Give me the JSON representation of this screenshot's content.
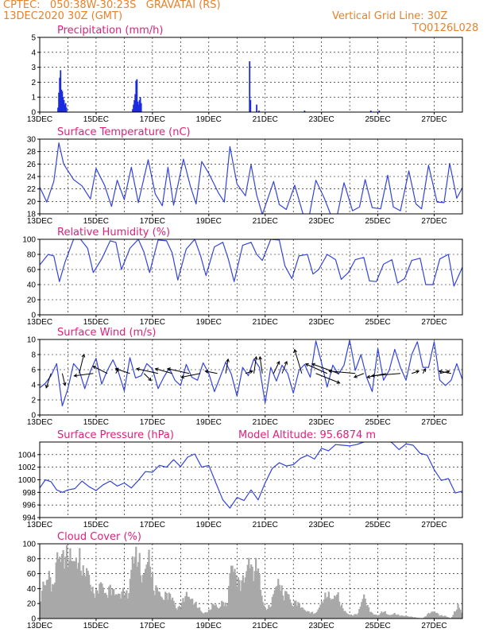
{
  "header": {
    "line1": "CPTEC:   050:38W-30:23S   GRAVATAI (RS)",
    "line2": "13DEC2020 30Z (GMT)",
    "grid_note": "Vertical Grid Line: 30Z",
    "run_code": "TQ0126L028"
  },
  "extra_label": "Model Altitude: 95.6874 m",
  "colors": {
    "line": "#3344dd",
    "bar": "#1a2bdd",
    "cloud": "#a8a8a8",
    "header": "#e8822a",
    "title": "#e0207a"
  },
  "chart_data": [
    {
      "type": "bar",
      "title": "Precipitation (mm/h)",
      "ylim": [
        0,
        5
      ],
      "yticks": [
        0,
        1,
        2,
        3,
        4,
        5
      ],
      "xticks": [
        "13DEC",
        "15DEC",
        "17DEC",
        "19DEC",
        "21DEC",
        "23DEC",
        "25DEC",
        "27DEC"
      ],
      "x_days": [
        13.0,
        28.0
      ],
      "bars": [
        {
          "x": 13.65,
          "y": 0.3
        },
        {
          "x": 13.68,
          "y": 1.3
        },
        {
          "x": 13.71,
          "y": 2.3
        },
        {
          "x": 13.74,
          "y": 2.8
        },
        {
          "x": 13.77,
          "y": 1.5
        },
        {
          "x": 13.8,
          "y": 1.4
        },
        {
          "x": 13.83,
          "y": 1.0
        },
        {
          "x": 13.86,
          "y": 0.8
        },
        {
          "x": 13.89,
          "y": 0.5
        },
        {
          "x": 13.92,
          "y": 0.6
        },
        {
          "x": 13.95,
          "y": 0.3
        },
        {
          "x": 16.3,
          "y": 0.2
        },
        {
          "x": 16.33,
          "y": 0.5
        },
        {
          "x": 16.36,
          "y": 0.8
        },
        {
          "x": 16.39,
          "y": 1.2
        },
        {
          "x": 16.42,
          "y": 2.1
        },
        {
          "x": 16.45,
          "y": 2.2
        },
        {
          "x": 16.48,
          "y": 0.7
        },
        {
          "x": 16.51,
          "y": 0.5
        },
        {
          "x": 16.54,
          "y": 0.8
        },
        {
          "x": 16.57,
          "y": 1.0
        },
        {
          "x": 16.6,
          "y": 0.6
        },
        {
          "x": 20.45,
          "y": 3.4
        },
        {
          "x": 20.48,
          "y": 0.8
        },
        {
          "x": 20.7,
          "y": 0.5
        },
        {
          "x": 20.78,
          "y": 0.1
        },
        {
          "x": 22.4,
          "y": 0.1
        },
        {
          "x": 24.75,
          "y": 0.1
        },
        {
          "x": 25.05,
          "y": 0.1
        }
      ]
    },
    {
      "type": "line",
      "title": "Surface Temperature (nC)",
      "ylim": [
        18,
        30
      ],
      "yticks": [
        18,
        20,
        22,
        24,
        26,
        28,
        30
      ],
      "xticks": [
        "13DEC",
        "15DEC",
        "17DEC",
        "19DEC",
        "21DEC",
        "23DEC",
        "25DEC",
        "27DEC"
      ],
      "x_days": [
        13.0,
        28.0
      ],
      "x": [
        13.0,
        13.25,
        13.5,
        13.68,
        13.85,
        14.2,
        14.5,
        14.8,
        15.0,
        15.3,
        15.55,
        15.75,
        16.0,
        16.25,
        16.5,
        16.85,
        17.1,
        17.35,
        17.55,
        17.75,
        18.1,
        18.35,
        18.55,
        18.75,
        19.0,
        19.35,
        19.55,
        19.75,
        20.0,
        20.3,
        20.5,
        20.7,
        20.9,
        21.3,
        21.5,
        21.75,
        22.05,
        22.35,
        22.55,
        22.8,
        23.1,
        23.35,
        23.55,
        23.8,
        24.1,
        24.35,
        24.55,
        24.8,
        25.1,
        25.35,
        25.55,
        25.8,
        26.1,
        26.35,
        26.55,
        26.8,
        27.1,
        27.35,
        27.55,
        27.8,
        28.0
      ],
      "y": [
        22.3,
        19.9,
        23.2,
        29.4,
        26.0,
        23.5,
        22.5,
        20.4,
        25.3,
        22.6,
        19.2,
        23.4,
        20.3,
        25.5,
        19.8,
        26.7,
        21.2,
        19.3,
        25.5,
        19.4,
        26.8,
        22.4,
        19.6,
        26.4,
        24.5,
        21.3,
        19.9,
        28.8,
        22.8,
        20.9,
        25.9,
        21.0,
        17.9,
        23.2,
        19.5,
        18.7,
        22.6,
        17.9,
        17.3,
        23.4,
        20.5,
        17.6,
        17.6,
        23.0,
        18.5,
        19.1,
        23.5,
        19.0,
        18.8,
        24.2,
        19.1,
        18.5,
        24.9,
        19.6,
        18.8,
        25.8,
        19.9,
        19.8,
        26.1,
        20.5,
        22.2
      ]
    },
    {
      "type": "line",
      "title": "Relative Humidity (%)",
      "ylim": [
        0,
        100
      ],
      "yticks": [
        0,
        20,
        40,
        60,
        80,
        100
      ],
      "xticks": [
        "13DEC",
        "15DEC",
        "17DEC",
        "19DEC",
        "21DEC",
        "23DEC",
        "25DEC",
        "27DEC"
      ],
      "x_days": [
        13.0,
        28.0
      ],
      "x": [
        13.0,
        13.3,
        13.5,
        13.7,
        13.9,
        14.2,
        14.45,
        14.7,
        14.9,
        15.2,
        15.5,
        15.7,
        15.9,
        16.2,
        16.5,
        16.7,
        16.9,
        17.2,
        17.5,
        17.7,
        17.9,
        18.2,
        18.5,
        18.7,
        18.9,
        19.2,
        19.5,
        19.7,
        19.9,
        20.2,
        20.5,
        20.7,
        20.9,
        21.2,
        21.5,
        21.7,
        21.95,
        22.2,
        22.5,
        22.7,
        22.9,
        23.2,
        23.5,
        23.7,
        23.95,
        24.2,
        24.5,
        24.7,
        24.95,
        25.2,
        25.5,
        25.7,
        25.95,
        26.2,
        26.5,
        26.7,
        26.95,
        27.2,
        27.5,
        27.7,
        28.0
      ],
      "y": [
        66,
        80,
        78,
        44,
        70,
        100,
        100,
        88,
        56,
        74,
        98,
        96,
        60,
        88,
        100,
        83,
        56,
        99,
        98,
        82,
        46,
        87,
        100,
        79,
        52,
        90,
        96,
        73,
        44,
        92,
        96,
        80,
        72,
        100,
        99,
        65,
        48,
        78,
        80,
        54,
        60,
        80,
        73,
        47,
        56,
        73,
        76,
        45,
        44,
        67,
        73,
        42,
        48,
        72,
        75,
        40,
        40,
        74,
        80,
        38,
        63
      ]
    },
    {
      "type": "line",
      "title": "Surface Wind (m/s)",
      "ylim": [
        0,
        10
      ],
      "yticks": [
        0,
        2,
        4,
        6,
        8,
        10
      ],
      "xticks": [
        "13DEC",
        "15DEC",
        "17DEC",
        "19DEC",
        "21DEC",
        "23DEC",
        "25DEC",
        "27DEC"
      ],
      "x_days": [
        13.0,
        28.0
      ],
      "x": [
        13.0,
        13.2,
        13.4,
        13.6,
        13.8,
        14.0,
        14.2,
        14.4,
        14.6,
        14.8,
        15.0,
        15.2,
        15.4,
        15.6,
        15.8,
        16.0,
        16.2,
        16.4,
        16.6,
        16.8,
        17.0,
        17.2,
        17.4,
        17.6,
        17.8,
        18.0,
        18.2,
        18.4,
        18.6,
        18.8,
        19.0,
        19.2,
        19.4,
        19.6,
        19.8,
        20.0,
        20.2,
        20.4,
        20.6,
        20.8,
        21.0,
        21.2,
        21.4,
        21.6,
        21.8,
        22.0,
        22.2,
        22.4,
        22.6,
        22.8,
        23.0,
        23.2,
        23.4,
        23.6,
        23.8,
        24.0,
        24.2,
        24.4,
        24.6,
        24.8,
        25.0,
        25.2,
        25.4,
        25.6,
        25.8,
        26.0,
        26.2,
        26.4,
        26.6,
        26.8,
        27.0,
        27.2,
        27.4,
        27.6,
        27.8,
        28.0
      ],
      "y": [
        3.6,
        4.2,
        5.2,
        6.8,
        1.2,
        3.5,
        6.8,
        5.9,
        3.5,
        5.8,
        7.5,
        4.1,
        5.9,
        7.3,
        5.6,
        3.2,
        7.6,
        4.9,
        5.2,
        6.8,
        6.1,
        3.5,
        5.0,
        6.2,
        4.6,
        3.9,
        6.7,
        5.0,
        4.6,
        6.9,
        5.5,
        3.1,
        5.0,
        7.0,
        5.4,
        2.5,
        6.3,
        5.2,
        7.4,
        6.3,
        1.6,
        6.3,
        4.5,
        6.6,
        5.5,
        2.9,
        5.9,
        6.7,
        5.0,
        9.8,
        6.9,
        3.7,
        6.6,
        5.4,
        6.6,
        9.9,
        5.9,
        8.0,
        5.0,
        3.1,
        8.8,
        4.6,
        5.9,
        8.7,
        6.3,
        4.6,
        8.0,
        9.7,
        6.3,
        6.3,
        9.7,
        4.6,
        3.9,
        4.6,
        6.8,
        4.7
      ],
      "arrows": [
        {
          "x": 13.4,
          "u": -1.0,
          "v": -3.0
        },
        {
          "x": 13.8,
          "u": 0.6,
          "v": -2.5
        },
        {
          "x": 14.4,
          "u": 1.0,
          "v": 4.0
        },
        {
          "x": 14.9,
          "u": -4.0,
          "v": -0.5
        },
        {
          "x": 15.4,
          "u": -3.0,
          "v": 1.5
        },
        {
          "x": 15.7,
          "u": 0.5,
          "v": 1.0
        },
        {
          "x": 16.2,
          "u": -3.0,
          "v": 1.0
        },
        {
          "x": 16.7,
          "u": 1.5,
          "v": -1.5
        },
        {
          "x": 17.2,
          "u": -4.5,
          "v": 1.0
        },
        {
          "x": 17.7,
          "u": -3.5,
          "v": 1.0
        },
        {
          "x": 18.3,
          "u": -4.5,
          "v": 1.0
        },
        {
          "x": 18.7,
          "u": -4.0,
          "v": -0.8
        },
        {
          "x": 19.3,
          "u": -2.5,
          "v": 0.5
        },
        {
          "x": 19.6,
          "u": 0.5,
          "v": 3.0
        },
        {
          "x": 20.3,
          "u": 1.5,
          "v": 0.5
        },
        {
          "x": 20.6,
          "u": 0.5,
          "v": 3.5
        },
        {
          "x": 20.9,
          "u": -0.5,
          "v": 3.5
        },
        {
          "x": 21.3,
          "u": 1.2,
          "v": 2.5
        },
        {
          "x": 21.6,
          "u": 1.0,
          "v": 2.5
        },
        {
          "x": 22.3,
          "u": -1.5,
          "v": 5.0
        },
        {
          "x": 22.8,
          "u": 5.0,
          "v": -2.0
        },
        {
          "x": 23.2,
          "u": -4.5,
          "v": 2.0
        },
        {
          "x": 23.6,
          "u": -5.5,
          "v": 2.0
        },
        {
          "x": 24.2,
          "u": -5.5,
          "v": 0.5
        },
        {
          "x": 24.5,
          "u": -2.0,
          "v": -0.8
        },
        {
          "x": 25.3,
          "u": -4.0,
          "v": -0.8
        },
        {
          "x": 25.8,
          "u": -6.0,
          "v": -0.5
        },
        {
          "x": 26.2,
          "u": 1.5,
          "v": 0.5
        },
        {
          "x": 26.6,
          "u": 0.5,
          "v": 1.0
        },
        {
          "x": 27.2,
          "u": 2.0,
          "v": 0.5
        },
        {
          "x": 27.6,
          "u": -2.5,
          "v": 0.5
        }
      ]
    },
    {
      "type": "line",
      "title": "Surface Pressure (hPa)",
      "ylim": [
        994,
        1006
      ],
      "yticks": [
        994,
        996,
        998,
        1000,
        1002,
        1004
      ],
      "xticks": [
        "13DEC",
        "15DEC",
        "17DEC",
        "19DEC",
        "21DEC",
        "23DEC",
        "25DEC",
        "27DEC"
      ],
      "x_days": [
        13.0,
        28.0
      ],
      "x": [
        13.0,
        13.2,
        13.4,
        13.6,
        13.8,
        14.0,
        14.25,
        14.5,
        14.75,
        15.0,
        15.25,
        15.5,
        15.75,
        16.0,
        16.25,
        16.5,
        16.75,
        17.0,
        17.25,
        17.5,
        17.75,
        18.0,
        18.25,
        18.5,
        18.75,
        19.0,
        19.25,
        19.5,
        19.75,
        20.0,
        20.25,
        20.5,
        20.75,
        21.0,
        21.25,
        21.5,
        21.75,
        22.0,
        22.25,
        22.5,
        22.75,
        23.0,
        23.25,
        23.5,
        23.75,
        24.0,
        24.25,
        24.5,
        24.75,
        25.0,
        25.25,
        25.5,
        25.75,
        26.0,
        26.25,
        26.5,
        26.75,
        27.0,
        27.25,
        27.5,
        27.75,
        28.0
      ],
      "y": [
        998.7,
        1000.0,
        999.7,
        998.4,
        998.0,
        998.4,
        998.6,
        999.8,
        998.9,
        998.3,
        999.2,
        999.8,
        999.0,
        999.5,
        998.7,
        999.9,
        1001.3,
        1001.2,
        1002.3,
        1002.0,
        1003.2,
        1002.1,
        1003.6,
        1004.1,
        1002.0,
        1002.3,
        999.5,
        996.8,
        995.5,
        997.2,
        996.7,
        998.4,
        996.8,
        999.5,
        1001.8,
        1002.7,
        1002.2,
        1002.4,
        1003.4,
        1003.9,
        1003.3,
        1005.0,
        1004.6,
        1005.6,
        1005.5,
        1005.4,
        1005.6,
        1006.0,
        1006.3,
        1006.2,
        1006.4,
        1005.9,
        1004.8,
        1005.7,
        1005.5,
        1004.2,
        1003.9,
        1001.6,
        999.9,
        1000.2,
        997.9,
        998.2
      ]
    },
    {
      "type": "bar",
      "title": "Cloud Cover (%)",
      "ylim": [
        0,
        100
      ],
      "yticks": [
        0,
        20,
        40,
        60,
        80,
        100
      ],
      "xticks": [
        "13DEC",
        "15DEC",
        "17DEC",
        "19DEC",
        "21DEC",
        "23DEC",
        "25DEC",
        "27DEC"
      ],
      "x_days": [
        13.0,
        28.0
      ],
      "keypoints": [
        [
          13.0,
          0
        ],
        [
          13.1,
          62
        ],
        [
          13.2,
          50
        ],
        [
          13.3,
          75
        ],
        [
          13.4,
          58
        ],
        [
          13.5,
          48
        ],
        [
          13.6,
          100
        ],
        [
          13.7,
          100
        ],
        [
          13.9,
          100
        ],
        [
          14.1,
          100
        ],
        [
          14.3,
          90
        ],
        [
          14.4,
          98
        ],
        [
          14.55,
          72
        ],
        [
          14.7,
          80
        ],
        [
          14.85,
          45
        ],
        [
          15.0,
          40
        ],
        [
          15.2,
          60
        ],
        [
          15.35,
          35
        ],
        [
          15.5,
          50
        ],
        [
          15.7,
          40
        ],
        [
          15.85,
          38
        ],
        [
          16.0,
          45
        ],
        [
          16.15,
          35
        ],
        [
          16.3,
          100
        ],
        [
          16.5,
          100
        ],
        [
          16.65,
          60
        ],
        [
          16.8,
          92
        ],
        [
          16.9,
          100
        ],
        [
          17.05,
          45
        ],
        [
          17.2,
          50
        ],
        [
          17.35,
          30
        ],
        [
          17.5,
          40
        ],
        [
          17.7,
          35
        ],
        [
          17.85,
          15
        ],
        [
          18.0,
          20
        ],
        [
          18.2,
          40
        ],
        [
          18.4,
          30
        ],
        [
          18.6,
          20
        ],
        [
          18.8,
          8
        ],
        [
          19.0,
          12
        ],
        [
          19.2,
          25
        ],
        [
          19.35,
          15
        ],
        [
          19.5,
          28
        ],
        [
          19.65,
          18
        ],
        [
          19.8,
          92
        ],
        [
          19.95,
          70
        ],
        [
          20.1,
          55
        ],
        [
          20.3,
          68
        ],
        [
          20.45,
          100
        ],
        [
          20.55,
          72
        ],
        [
          20.75,
          90
        ],
        [
          20.85,
          42
        ],
        [
          21.0,
          15
        ],
        [
          21.2,
          20
        ],
        [
          21.35,
          50
        ],
        [
          21.5,
          60
        ],
        [
          21.65,
          35
        ],
        [
          21.8,
          45
        ],
        [
          21.95,
          20
        ],
        [
          22.1,
          28
        ],
        [
          22.3,
          18
        ],
        [
          22.45,
          12
        ],
        [
          22.6,
          10
        ],
        [
          22.8,
          8
        ],
        [
          23.0,
          25
        ],
        [
          23.2,
          40
        ],
        [
          23.4,
          30
        ],
        [
          23.55,
          42
        ],
        [
          23.7,
          20
        ],
        [
          23.9,
          8
        ],
        [
          24.1,
          5
        ],
        [
          24.3,
          8
        ],
        [
          24.5,
          38
        ],
        [
          24.65,
          18
        ],
        [
          24.8,
          8
        ],
        [
          25.0,
          5
        ],
        [
          25.2,
          12
        ],
        [
          25.4,
          5
        ],
        [
          25.6,
          8
        ],
        [
          25.75,
          5
        ],
        [
          26.0,
          4
        ],
        [
          26.3,
          2
        ],
        [
          26.6,
          0
        ],
        [
          26.8,
          8
        ],
        [
          27.0,
          12
        ],
        [
          27.2,
          5
        ],
        [
          27.4,
          4
        ],
        [
          27.6,
          0
        ],
        [
          27.75,
          12
        ],
        [
          27.85,
          20
        ],
        [
          27.95,
          15
        ],
        [
          28.0,
          0
        ]
      ]
    }
  ]
}
